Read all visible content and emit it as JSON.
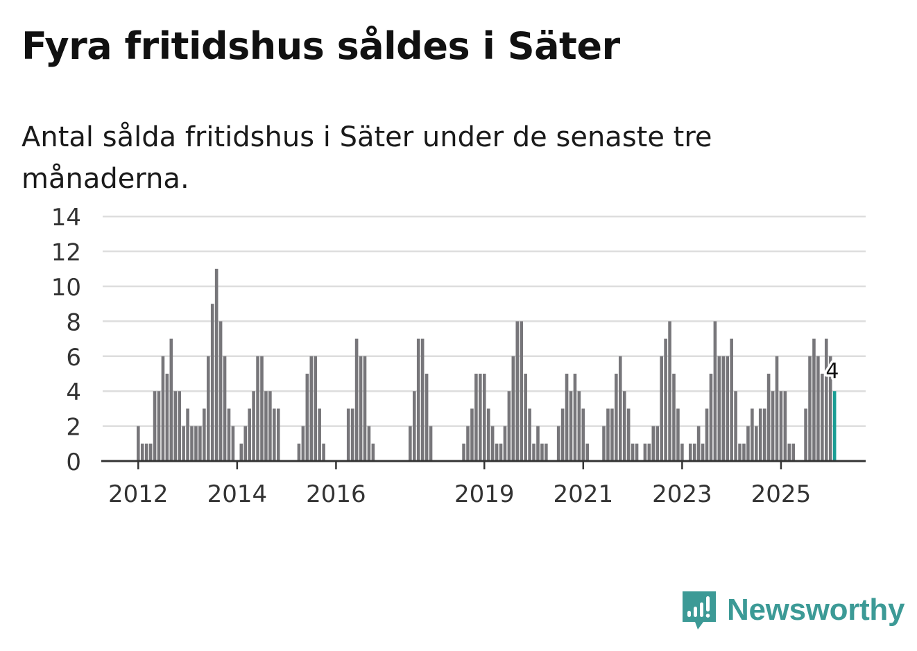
{
  "header": {
    "title": "Fyra fritidshus såldes i Säter",
    "subtitle": "Antal sålda fritidshus i Säter under de senaste tre månaderna."
  },
  "brand": {
    "name": "Newsworthy",
    "color": "#3c9a96"
  },
  "colors": {
    "bar": "#77767a",
    "highlight": "#1a9e94",
    "grid": "#dddddd",
    "axis": "#333333"
  },
  "chart_data": {
    "type": "bar",
    "x_start": "2011-01",
    "frequency": "monthly",
    "values": [
      0,
      0,
      0,
      0,
      0,
      0,
      0,
      0,
      0,
      0,
      0,
      0,
      2,
      1,
      1,
      1,
      4,
      4,
      6,
      5,
      7,
      4,
      4,
      2,
      3,
      2,
      2,
      2,
      3,
      6,
      9,
      11,
      8,
      6,
      3,
      2,
      0,
      1,
      2,
      3,
      4,
      6,
      6,
      4,
      4,
      3,
      3,
      0,
      0,
      0,
      0,
      1,
      2,
      5,
      6,
      6,
      3,
      1,
      0,
      0,
      0,
      0,
      0,
      3,
      3,
      7,
      6,
      6,
      2,
      1,
      0,
      0,
      0,
      0,
      0,
      0,
      0,
      0,
      2,
      4,
      7,
      7,
      5,
      2,
      0,
      0,
      0,
      0,
      0,
      0,
      0,
      1,
      2,
      3,
      5,
      5,
      5,
      3,
      2,
      1,
      1,
      2,
      4,
      6,
      8,
      8,
      5,
      3,
      1,
      2,
      1,
      1,
      0,
      0,
      2,
      3,
      5,
      4,
      5,
      4,
      3,
      1,
      0,
      0,
      0,
      2,
      3,
      3,
      5,
      6,
      4,
      3,
      1,
      1,
      0,
      1,
      1,
      2,
      2,
      6,
      7,
      8,
      5,
      3,
      1,
      0,
      1,
      1,
      2,
      1,
      3,
      5,
      8,
      6,
      6,
      6,
      7,
      4,
      1,
      1,
      2,
      3,
      2,
      3,
      3,
      5,
      4,
      6,
      4,
      4,
      1,
      1,
      0,
      0,
      3,
      6,
      7,
      6,
      5,
      7,
      6,
      4
    ],
    "highlight_last": true,
    "last_label": "4",
    "xticks": [
      {
        "label": "2012",
        "date": "2012-01"
      },
      {
        "label": "2014",
        "date": "2014-01"
      },
      {
        "label": "2016",
        "date": "2016-01"
      },
      {
        "label": "2019",
        "date": "2019-01"
      },
      {
        "label": "2021",
        "date": "2021-01"
      },
      {
        "label": "2023",
        "date": "2023-01"
      },
      {
        "label": "2025",
        "date": "2025-01"
      }
    ],
    "yticks": [
      0,
      2,
      4,
      6,
      8,
      10,
      12,
      14
    ],
    "ylim": [
      0,
      14
    ],
    "grid": true
  }
}
